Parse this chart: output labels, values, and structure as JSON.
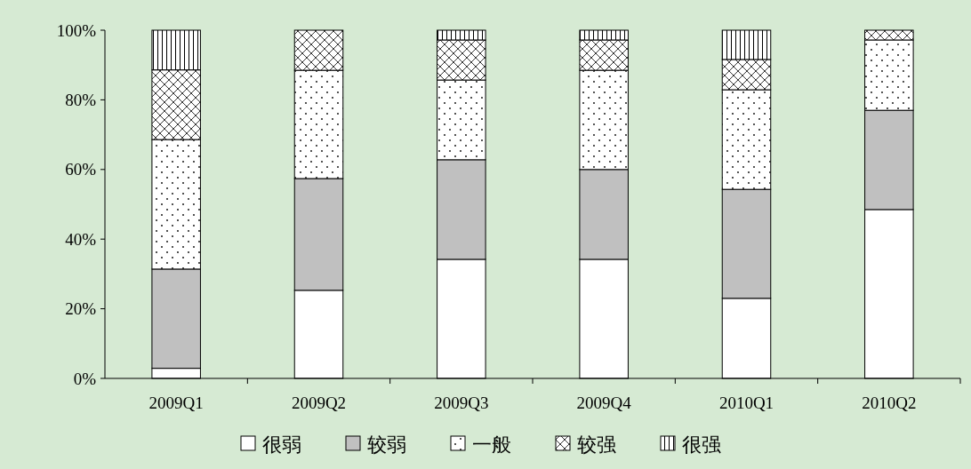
{
  "chart_data": {
    "type": "bar",
    "stacked": true,
    "categories": [
      "2009Q1",
      "2009Q2",
      "2009Q3",
      "2009Q4",
      "2010Q1",
      "2010Q2"
    ],
    "series": [
      {
        "name": "很弱",
        "color": "#ffffff",
        "values": [
          2.9,
          25.3,
          34.2,
          34.2,
          23,
          48.5
        ]
      },
      {
        "name": "较弱",
        "color": "#c0c0c0",
        "values": [
          28.5,
          32.1,
          28.6,
          25.8,
          31.3,
          28.5
        ]
      },
      {
        "name": "一般",
        "color": "#ffffff",
        "values": [
          37.2,
          31.1,
          22.9,
          28.5,
          28.6,
          20.2
        ]
      },
      {
        "name": "较强",
        "color": "#ffffff",
        "values": [
          20,
          11.5,
          11.5,
          8.7,
          8.7,
          2.8
        ]
      },
      {
        "name": "很强",
        "color": "#ffffff",
        "values": [
          11.4,
          0,
          2.8,
          2.8,
          8.4,
          0
        ]
      }
    ],
    "ylim": [
      0,
      100
    ],
    "yticks": [
      {
        "value": 0,
        "label": "0%"
      },
      {
        "value": 20,
        "label": "20%"
      },
      {
        "value": 40,
        "label": "40%"
      },
      {
        "value": 60,
        "label": "60%"
      },
      {
        "value": 80,
        "label": "80%"
      },
      {
        "value": 100,
        "label": "100%"
      }
    ],
    "grid": false,
    "legend": "bottom"
  }
}
